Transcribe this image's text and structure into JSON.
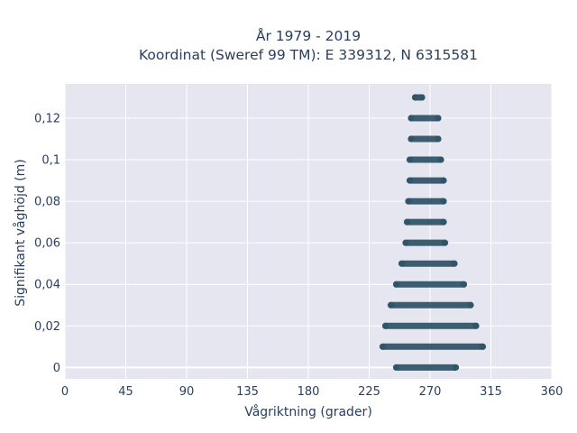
{
  "chart_data": {
    "type": "scatter",
    "title_line1": "År 1979 - 2019",
    "title_line2": "Koordinat (Sweref 99 TM): E 339312, N 6315581",
    "xlabel": "Vågriktning (grader)",
    "ylabel": "Signifikant våghöjd (m)",
    "xlim": [
      0,
      360
    ],
    "ylim": [
      -0.0055,
      0.1365
    ],
    "x_ticks": [
      0,
      45,
      90,
      135,
      180,
      225,
      270,
      315,
      360
    ],
    "y_ticks": [
      0,
      0.02,
      0.04,
      0.06,
      0.08,
      0.1,
      0.12
    ],
    "x_tick_labels": [
      "0",
      "45",
      "90",
      "135",
      "180",
      "225",
      "270",
      "315",
      "360"
    ],
    "y_tick_labels": [
      "0",
      "0,02",
      "0,04",
      "0,06",
      "0,08",
      "0,1",
      "0,12"
    ],
    "grid": true,
    "marker_color": "#2e5266",
    "plot_bg": "#e5e6f0",
    "bands": [
      {
        "y": 0.0,
        "x_min": 245,
        "x_max": 289
      },
      {
        "y": 0.01,
        "x_min": 235,
        "x_max": 309
      },
      {
        "y": 0.02,
        "x_min": 237,
        "x_max": 304
      },
      {
        "y": 0.03,
        "x_min": 241,
        "x_max": 300
      },
      {
        "y": 0.04,
        "x_min": 245,
        "x_max": 295
      },
      {
        "y": 0.05,
        "x_min": 249,
        "x_max": 288
      },
      {
        "y": 0.06,
        "x_min": 252,
        "x_max": 281
      },
      {
        "y": 0.07,
        "x_min": 253,
        "x_max": 280
      },
      {
        "y": 0.08,
        "x_min": 254,
        "x_max": 280
      },
      {
        "y": 0.09,
        "x_min": 255,
        "x_max": 280
      },
      {
        "y": 0.1,
        "x_min": 255,
        "x_max": 278
      },
      {
        "y": 0.11,
        "x_min": 256,
        "x_max": 276
      },
      {
        "y": 0.12,
        "x_min": 256,
        "x_max": 276
      },
      {
        "y": 0.13,
        "x_min": 259,
        "x_max": 264
      }
    ]
  }
}
